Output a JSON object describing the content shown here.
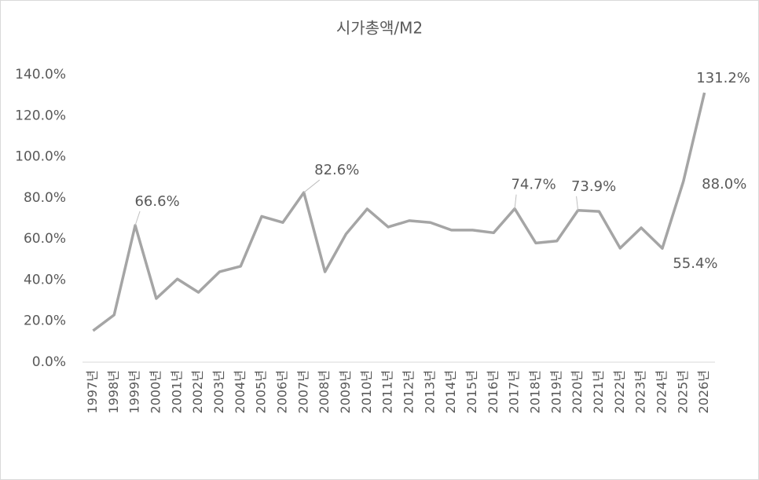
{
  "chart_data": {
    "type": "line",
    "title": "시가총액/M2",
    "categories": [
      "1997년",
      "1998년",
      "1999년",
      "2000년",
      "2001년",
      "2002년",
      "2003년",
      "2004년",
      "2005년",
      "2006년",
      "2007년",
      "2008년",
      "2009년",
      "2010년",
      "2011년",
      "2012년",
      "2013년",
      "2014년",
      "2015년",
      "2016년",
      "2017년",
      "2018년",
      "2019년",
      "2020년",
      "2021년",
      "2022년",
      "2023년",
      "2024년",
      "2025년",
      "2026년"
    ],
    "series": [
      {
        "color": "#a5a5a5",
        "values": [
          15.3,
          23,
          66.6,
          31,
          40.5,
          34,
          44,
          46.7,
          71,
          68,
          82.6,
          44,
          62.4,
          74.6,
          65.8,
          68.9,
          68,
          64.3,
          64.3,
          63,
          74.7,
          58,
          59,
          73.9,
          73.4,
          55.5,
          65.4,
          55.4,
          88.0,
          131.2
        ],
        "value_labels": [
          null,
          null,
          "66.6%",
          null,
          null,
          null,
          null,
          null,
          null,
          null,
          "82.6%",
          null,
          null,
          null,
          null,
          null,
          null,
          null,
          null,
          null,
          "74.7%",
          null,
          null,
          "73.9%",
          null,
          null,
          null,
          "55.4%",
          "88.0%",
          "131.2%"
        ]
      }
    ],
    "ylim": [
      0,
      140
    ],
    "yticks": [
      {
        "value": 0,
        "label": "0.0%"
      },
      {
        "value": 20,
        "label": "20.0%"
      },
      {
        "value": 40,
        "label": "40.0%"
      },
      {
        "value": 60,
        "label": "60.0%"
      },
      {
        "value": 80,
        "label": "80.0%"
      },
      {
        "value": 100,
        "label": "100.0%"
      },
      {
        "value": 120,
        "label": "120.0%"
      },
      {
        "value": 140,
        "label": "140.0%"
      }
    ],
    "grid": false
  }
}
